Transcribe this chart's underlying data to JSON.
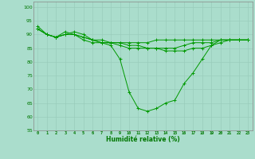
{
  "xlabel": "Humidité relative (%)",
  "background_color": "#aaddcc",
  "grid_color": "#99ccbb",
  "line_color": "#009900",
  "text_color": "#007700",
  "ylim": [
    55,
    102
  ],
  "xlim": [
    -0.5,
    23.5
  ],
  "yticks": [
    55,
    60,
    65,
    70,
    75,
    80,
    85,
    90,
    95,
    100
  ],
  "xticks": [
    0,
    1,
    2,
    3,
    4,
    5,
    6,
    7,
    8,
    9,
    10,
    11,
    12,
    13,
    14,
    15,
    16,
    17,
    18,
    19,
    20,
    21,
    22,
    23
  ],
  "series": [
    [
      93,
      90,
      89,
      91,
      90,
      88,
      87,
      87,
      86,
      81,
      69,
      63,
      62,
      63,
      65,
      66,
      72,
      76,
      81,
      86,
      88,
      88,
      88,
      88
    ],
    [
      92,
      90,
      89,
      90,
      90,
      89,
      88,
      87,
      87,
      87,
      87,
      87,
      87,
      88,
      88,
      88,
      88,
      88,
      88,
      88,
      88,
      88,
      88,
      88
    ],
    [
      92,
      90,
      89,
      90,
      91,
      90,
      88,
      87,
      87,
      86,
      85,
      85,
      85,
      85,
      85,
      85,
      86,
      87,
      87,
      87,
      88,
      88,
      88,
      88
    ],
    [
      92,
      90,
      89,
      90,
      90,
      89,
      88,
      88,
      87,
      87,
      86,
      86,
      85,
      85,
      84,
      84,
      84,
      85,
      85,
      86,
      87,
      88,
      88,
      88
    ]
  ]
}
